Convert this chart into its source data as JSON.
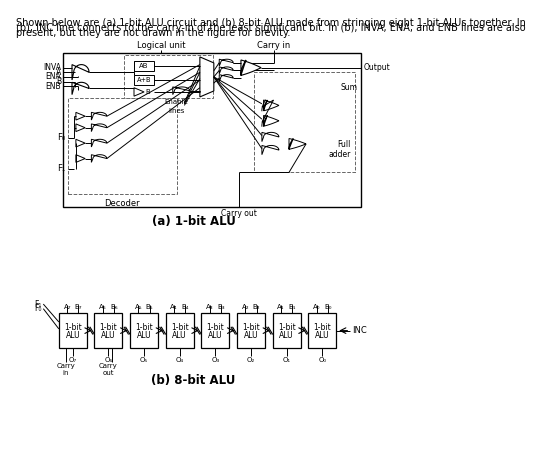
{
  "bg_color": "#ffffff",
  "text_color": "#000000",
  "caption_a": "(a) 1-bit ALU",
  "caption_b": "(b) 8-bit ALU",
  "title_line1": "Shown below are (a) 1-bit ALU circuit and (b) 8-bit ALU made from stringing eight 1-bit ALUs together. In",
  "title_line2": "(b), INC line connects to the carry-in of the least significant bit. In (b), INVA, ENA, and ENB lines are also",
  "title_line3": "present, but they are not drawn in the figure for brevity.",
  "font_title": 7.0,
  "font_label": 6.5,
  "font_caption": 8.5
}
